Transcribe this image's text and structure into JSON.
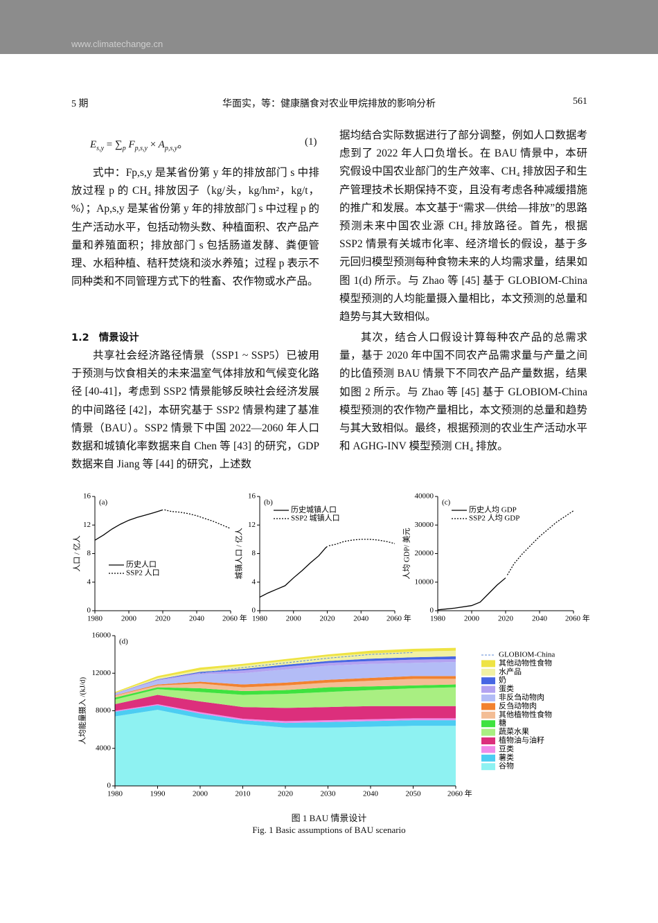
{
  "header": {
    "site": "www.climatechange.cn",
    "issue": "5 期",
    "running_title": "华面实，等：健康膳食对农业甲烷排放的影响分析",
    "page": "561"
  },
  "equation": {
    "parts": [
      "E",
      "s,y",
      "=",
      "∑",
      "p",
      "F",
      "p,s,y",
      "×",
      "A",
      "p,s,y",
      "。"
    ],
    "number": "(1)"
  },
  "left_column": {
    "paragraph_1": "式中：Fp,s,y 是某省份第 y 年的排放部门 s 中排放过程 p 的 CH₄ 排放因子（kg/头，kg/hm²，kg/t，%）；Ap,s,y 是某省份第 y 年的排放部门 s 中过程 p 的生产活动水平，包括动物头数、种植面积、农产品产量和养殖面积；排放部门 s 包括肠道发酵、粪便管理、水稻种植、秸秆焚烧和淡水养殖；过程 p 表示不同种类和不同管理方式下的牲畜、农作物或水产品。",
    "heading_number": "1.2",
    "heading_title": "情景设计",
    "paragraph_2": "共享社会经济路径情景（SSP1 ~ SSP5）已被用于预测与饮食相关的未来温室气体排放和气候变化路径 [40-41]，考虑到 SSP2 情景能够反映社会经济发展的中间路径 [42]，本研究基于 SSP2 情景构建了基准情景（BAU）。SSP2 情景下中国 2022—2060 年人口数据和城镇化率数据来自 Chen 等 [43] 的研究，GDP 数据来自 Jiang 等 [44] 的研究，上述数"
  },
  "right_column": {
    "paragraph_1": "据均结合实际数据进行了部分调整，例如人口数据考虑到了 2022 年人口负增长。在 BAU 情景中，本研究假设中国农业部门的生产效率、CH₄ 排放因子和生产管理技术长期保持不变，且没有考虑各种减缓措施的推广和发展。本文基于“需求—供给—排放”的思路预测未来中国农业源 CH₄ 排放路径。首先，根据 SSP2 情景有关城市化率、经济增长的假设，基于多元回归模型预测每种食物未来的人均需求量，结果如图 1(d) 所示。与 Zhao 等 [45] 基于 GLOBIOM-China 模型预测的人均能量摄入量相比，本文预测的总量和趋势与其大致相似。",
    "paragraph_2": "其次，结合人口假设计算每种农产品的总需求量，基于 2020 年中国不同农产品需求量与产量之间的比值预测 BAU 情景下不同农产品产量数据，结果如图 2 所示。与 Zhao 等 [45] 基于 GLOBIOM-China 模型预测的农作物产量相比，本文预测的总量和趋势与其大致相似。最终，根据预测的农业生产活动水平和 AGHG-INV 模型预测 CH₄ 排放。"
  },
  "figure": {
    "caption_zh": "图 1  BAU 情景设计",
    "caption_en": "Fig. 1  Basic assumptions of BAU scenario"
  },
  "chart_data": [
    {
      "type": "line",
      "panel_label": "(a)",
      "y_label": "人口 / 亿人",
      "legend": "lower left",
      "xlim": [
        1980,
        2060
      ],
      "xticks": [
        1980,
        2000,
        2020,
        2040,
        {
          "value": 2060,
          "label": "2060 年"
        }
      ],
      "ylim": [
        0,
        16
      ],
      "yticks": [
        0,
        4,
        8,
        12,
        16
      ],
      "series": [
        {
          "name": "历史人口",
          "color": "#000000",
          "dash": "solid",
          "x": [
            1980,
            1985,
            1990,
            1995,
            2000,
            2005,
            2010,
            2015,
            2020
          ],
          "values": [
            9.87,
            10.59,
            11.43,
            12.11,
            12.67,
            13.08,
            13.41,
            13.75,
            14.12
          ]
        },
        {
          "name": "SSP2 人口",
          "color": "#000000",
          "dash": "dotted",
          "x": [
            2021,
            2025,
            2030,
            2035,
            2040,
            2045,
            2050,
            2055,
            2060
          ],
          "values": [
            14.13,
            13.9,
            13.8,
            13.6,
            13.3,
            12.9,
            12.5,
            12.0,
            11.5
          ]
        }
      ]
    },
    {
      "type": "line",
      "panel_label": "(b)",
      "y_label": "城镇人口 / 亿人",
      "legend": "upper left",
      "xlim": [
        1980,
        2060
      ],
      "xticks": [
        1980,
        2000,
        2020,
        2040,
        {
          "value": 2060,
          "label": "2060 年"
        }
      ],
      "ylim": [
        0,
        16
      ],
      "yticks": [
        0,
        4,
        8,
        12,
        16
      ],
      "series": [
        {
          "name": "历史城镇人口",
          "color": "#000000",
          "dash": "solid",
          "x": [
            1980,
            1985,
            1990,
            1995,
            2000,
            2005,
            2010,
            2015,
            2019,
            2020
          ],
          "values": [
            1.9,
            2.5,
            3.0,
            3.5,
            4.6,
            5.6,
            6.7,
            7.7,
            8.8,
            9.0
          ]
        },
        {
          "name": "SSP2 城镇人口",
          "color": "#000000",
          "dash": "dotted",
          "x": [
            2021,
            2025,
            2030,
            2035,
            2040,
            2045,
            2050,
            2055,
            2060
          ],
          "values": [
            9.1,
            9.3,
            9.7,
            9.9,
            10.0,
            10.0,
            9.9,
            9.7,
            9.4
          ]
        }
      ]
    },
    {
      "type": "line",
      "panel_label": "(c)",
      "y_label": "人均 GDP/ 美元",
      "legend": "upper left",
      "xlim": [
        1980,
        2060
      ],
      "xticks": [
        1980,
        2000,
        2020,
        2040,
        {
          "value": 2060,
          "label": "2060 年"
        }
      ],
      "ylim": [
        0,
        40000
      ],
      "yticks": [
        0,
        10000,
        20000,
        30000,
        40000
      ],
      "series": [
        {
          "name": "历史人均 GDP",
          "color": "#000000",
          "dash": "solid",
          "x": [
            1980,
            1990,
            2000,
            2005,
            2010,
            2015,
            2020
          ],
          "values": [
            300,
            900,
            1800,
            3000,
            6000,
            9000,
            11500
          ]
        },
        {
          "name": "SSP2 人均 GDP",
          "color": "#000000",
          "dash": "dotted",
          "x": [
            2021,
            2025,
            2030,
            2035,
            2040,
            2045,
            2050,
            2055,
            2060
          ],
          "values": [
            12500,
            16500,
            20000,
            23000,
            26000,
            28500,
            31000,
            33000,
            35000
          ]
        }
      ]
    },
    {
      "type": "area",
      "stacked": true,
      "panel_label": "(d)",
      "y_label": "人均能量摄入 /(kJ/d)",
      "legend": "right",
      "xlim": [
        1980,
        2060
      ],
      "xticks": [
        1980,
        1990,
        2000,
        2010,
        2020,
        2030,
        2040,
        2050,
        {
          "value": 2060,
          "label": "2060 年"
        }
      ],
      "ylim": [
        0,
        16000
      ],
      "yticks": [
        0,
        4000,
        8000,
        12000,
        16000
      ],
      "x": [
        1980,
        1990,
        2000,
        2010,
        2020,
        2030,
        2040,
        2050,
        2060
      ],
      "series": [
        {
          "name": "谷物",
          "color": "#8ef2f2",
          "values": [
            7400,
            8100,
            7200,
            6600,
            6200,
            6200,
            6300,
            6400,
            6400
          ]
        },
        {
          "name": "薯类",
          "color": "#4ccdf2",
          "values": [
            500,
            500,
            500,
            400,
            500,
            600,
            600,
            600,
            600
          ]
        },
        {
          "name": "豆类",
          "color": "#f08ae8",
          "values": [
            100,
            100,
            150,
            150,
            200,
            200,
            200,
            200,
            200
          ]
        },
        {
          "name": "植物油与油籽",
          "color": "#dc2f7c",
          "values": [
            700,
            1000,
            1150,
            1250,
            1400,
            1400,
            1400,
            1300,
            1300
          ]
        },
        {
          "name": "蔬菜水果",
          "color": "#a9ef82",
          "values": [
            500,
            600,
            1000,
            1300,
            1500,
            1600,
            1700,
            1900,
            2000
          ]
        },
        {
          "name": "糖",
          "color": "#3fe23f",
          "values": [
            200,
            200,
            400,
            400,
            400,
            500,
            400,
            300,
            300
          ]
        },
        {
          "name": "其他植物性食物",
          "color": "#f3bd95",
          "values": [
            200,
            200,
            500,
            400,
            500,
            500,
            600,
            700,
            600
          ]
        },
        {
          "name": "反刍动物肉",
          "color": "#f2822f",
          "values": [
            50,
            100,
            200,
            300,
            300,
            300,
            300,
            300,
            300
          ]
        },
        {
          "name": "非反刍动物肉",
          "color": "#b3bcf6",
          "values": [
            150,
            400,
            800,
            1200,
            1400,
            1500,
            1500,
            1400,
            1500
          ]
        },
        {
          "name": "蛋类",
          "color": "#b3a2f1",
          "values": [
            50,
            100,
            150,
            300,
            300,
            300,
            300,
            350,
            300
          ]
        },
        {
          "name": "奶",
          "color": "#4766e3",
          "values": [
            20,
            50,
            100,
            150,
            200,
            200,
            250,
            250,
            300
          ]
        },
        {
          "name": "水产品",
          "color": "#f1f1a4",
          "values": [
            30,
            150,
            200,
            350,
            400,
            500,
            550,
            600,
            600
          ]
        },
        {
          "name": "其他动物性食物",
          "color": "#eee343",
          "values": [
            100,
            200,
            250,
            200,
            200,
            200,
            300,
            300,
            300
          ]
        }
      ],
      "reference_line": {
        "name": "GLOBIOM-China",
        "color": "#5b8ad6",
        "dash": "dashed",
        "x": [
          2000,
          2010,
          2020,
          2030,
          2040,
          2050
        ],
        "values": [
          12000,
          12600,
          13100,
          13600,
          14000,
          14200
        ]
      }
    }
  ]
}
